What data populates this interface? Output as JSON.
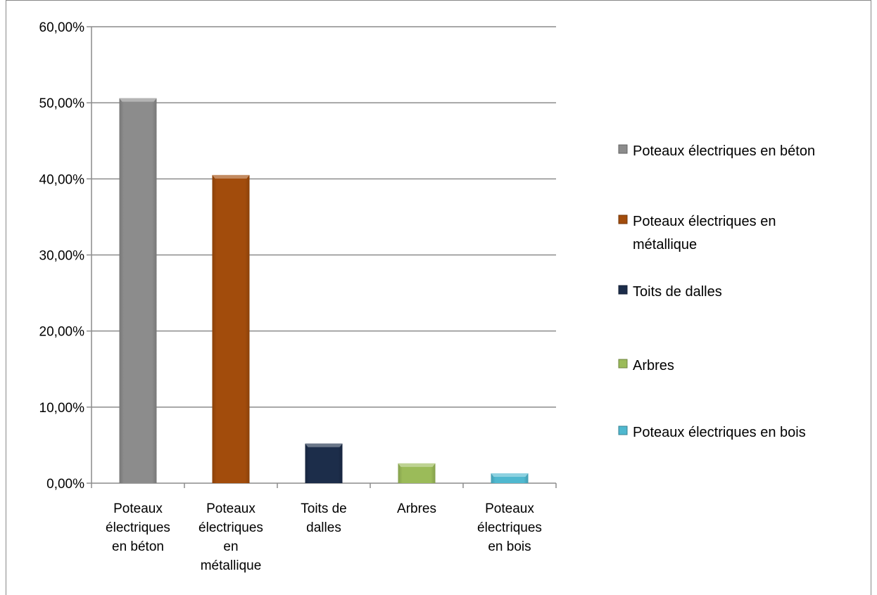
{
  "chart_data": {
    "type": "bar",
    "categories": [
      "Poteaux électriques en béton",
      "Poteaux électriques en métallique",
      "Toits de dalles",
      "Arbres",
      "Poteaux électriques en bois"
    ],
    "category_tick_labels": [
      [
        "Poteaux",
        "électriques",
        "en béton"
      ],
      [
        "Poteaux",
        "électriques",
        "en",
        "métallique"
      ],
      [
        "Toits de",
        "dalles"
      ],
      [
        "Arbres"
      ],
      [
        "Poteaux",
        "électriques",
        "en bois"
      ]
    ],
    "values": [
      50.6,
      40.5,
      5.2,
      2.6,
      1.3
    ],
    "colors": [
      "#8c8c8c",
      "#a24c0c",
      "#1c2d4a",
      "#9bbb59",
      "#4fb8cf"
    ],
    "ylim": [
      0,
      60
    ],
    "yticks": [
      0,
      10,
      20,
      30,
      40,
      50,
      60
    ],
    "ytick_labels": [
      "0,00%",
      "10,00%",
      "20,00%",
      "30,00%",
      "40,00%",
      "50,00%",
      "60,00%"
    ],
    "grid": true,
    "legend": {
      "position": "right",
      "entries": [
        {
          "label_lines": [
            "Poteaux électriques en béton"
          ]
        },
        {
          "label_lines": [
            "Poteaux électriques en",
            "métallique"
          ]
        },
        {
          "label_lines": [
            "Toits de dalles"
          ]
        },
        {
          "label_lines": [
            "Arbres"
          ]
        },
        {
          "label_lines": [
            "Poteaux électriques en bois"
          ]
        }
      ]
    }
  }
}
